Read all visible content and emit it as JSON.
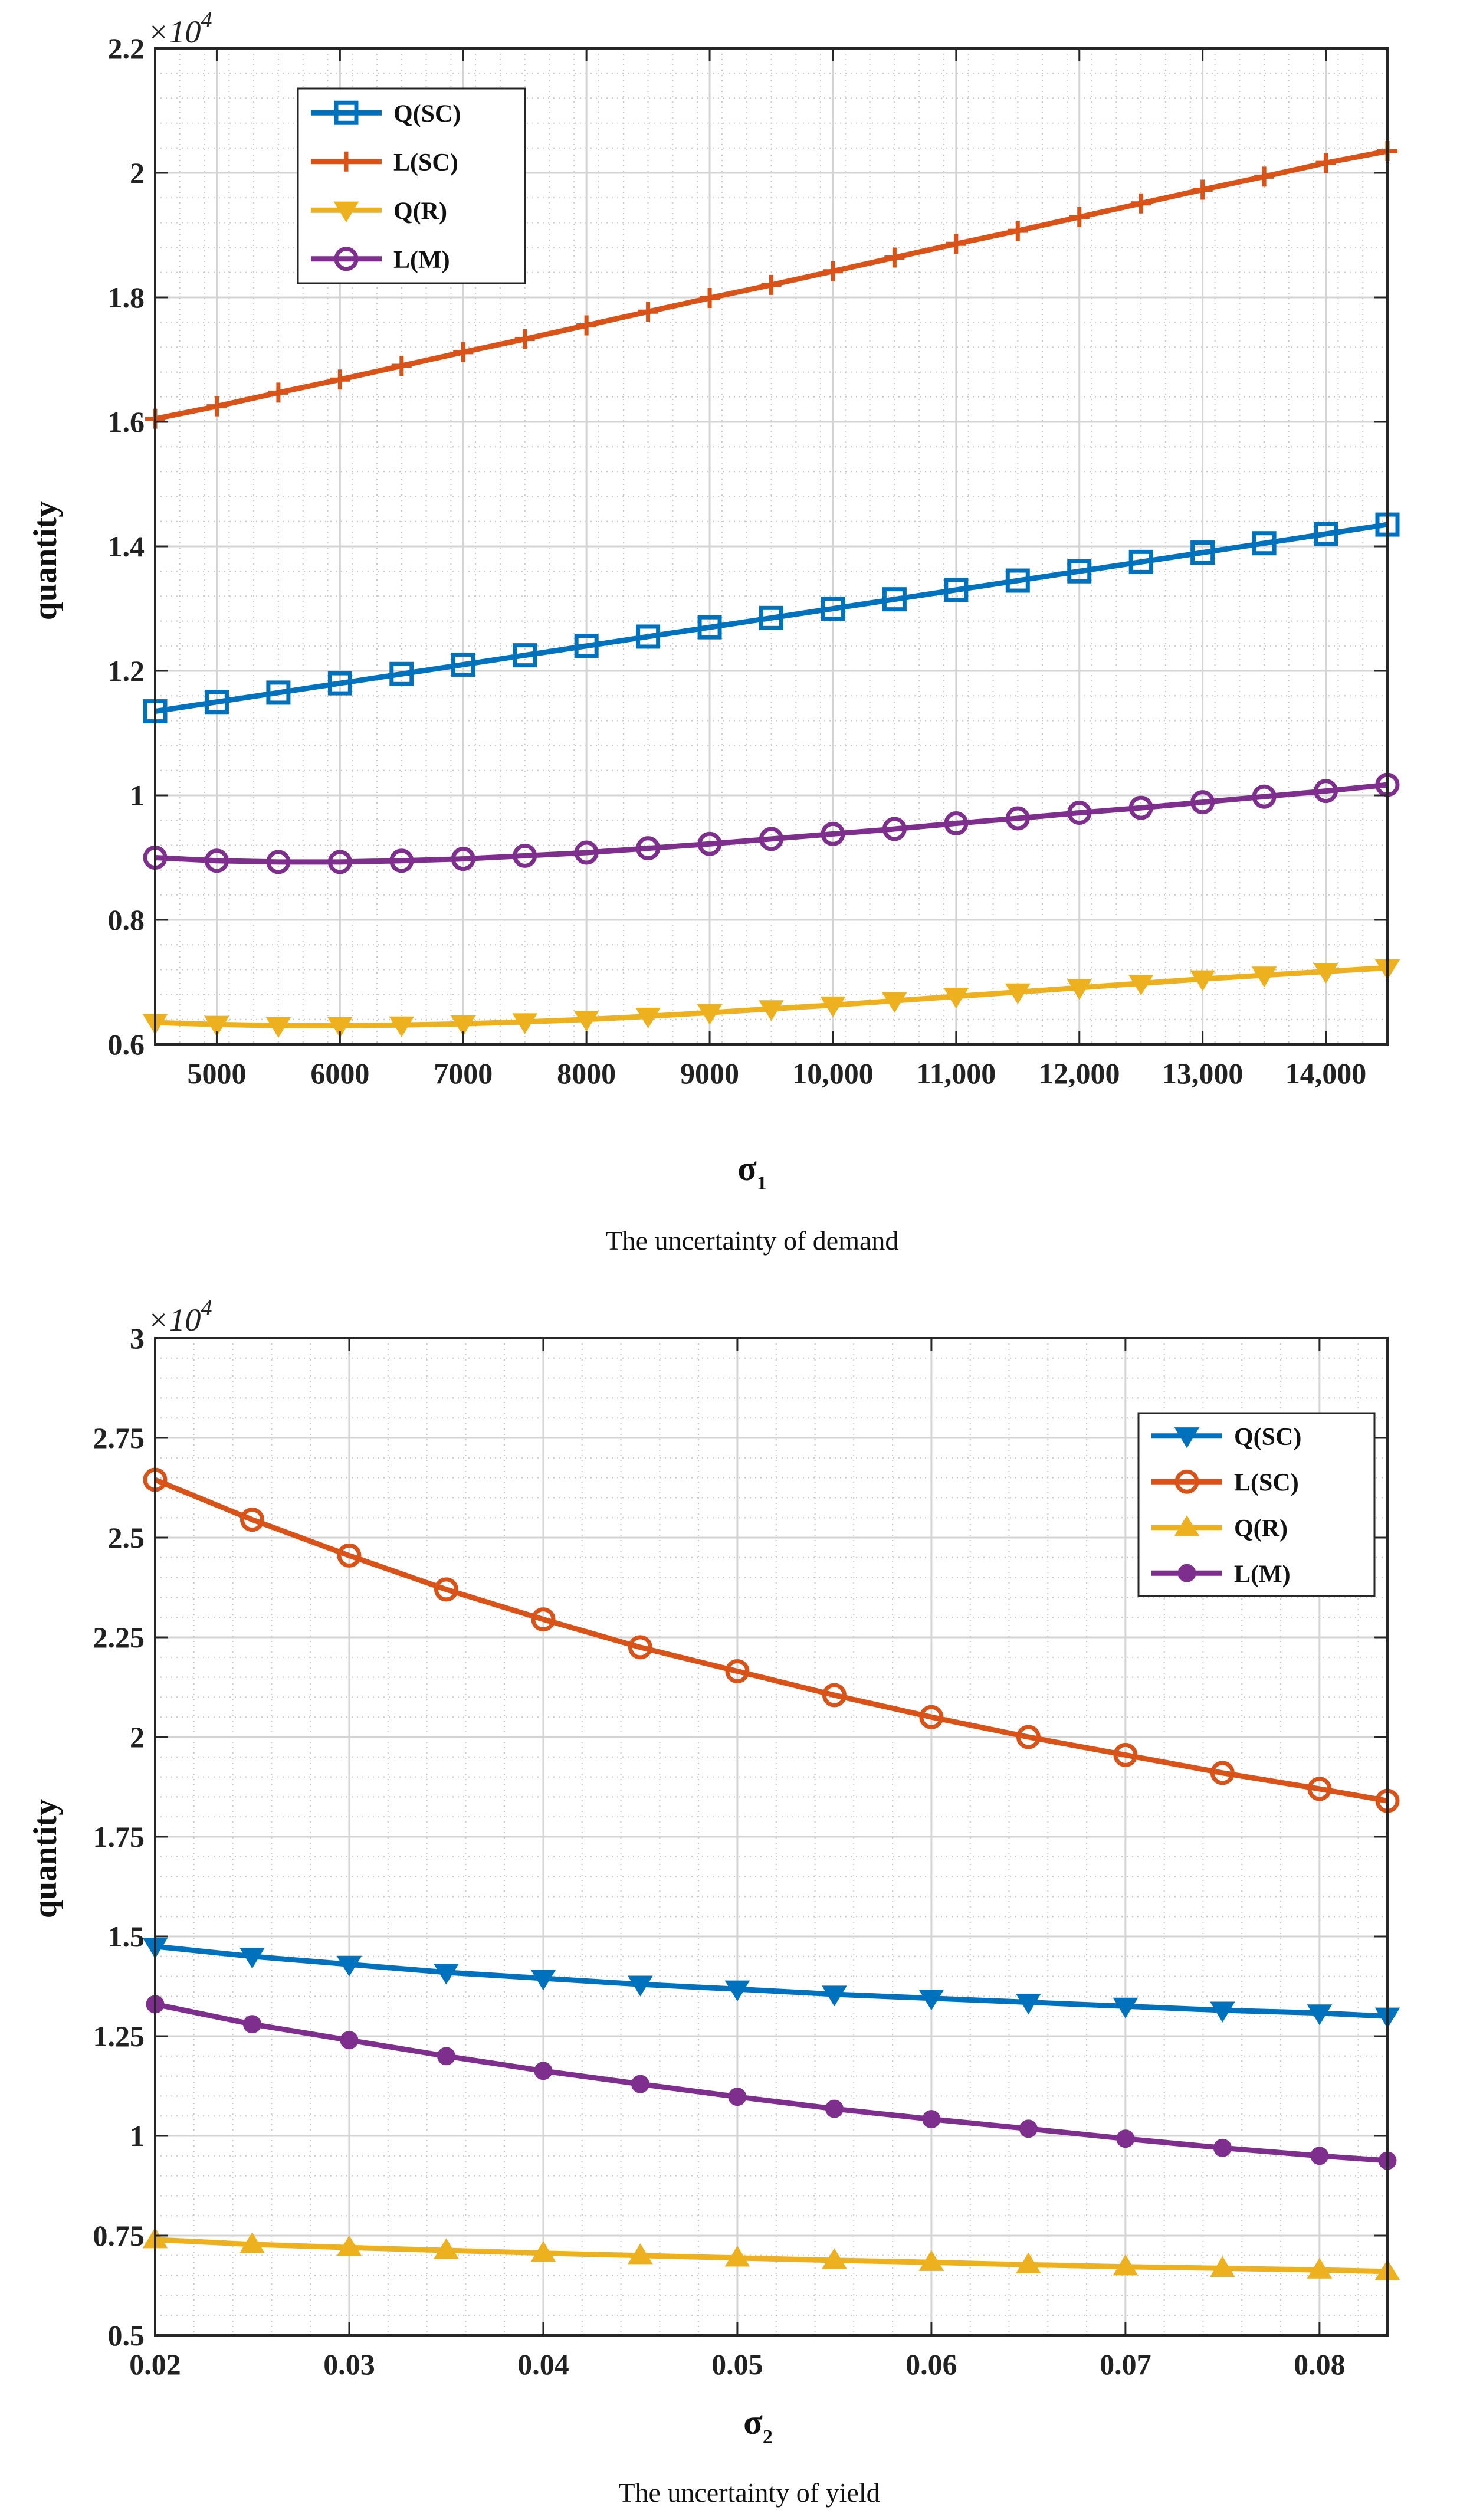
{
  "chart_data": [
    {
      "type": "line",
      "caption": "The uncertainty of demand",
      "xlabel": "σ",
      "xlabel_sub": "1",
      "ylabel": "quantity",
      "y_multiplier": "×10",
      "y_multiplier_exp": "4",
      "xlim": [
        4500,
        14500
      ],
      "ylim": [
        0.6,
        2.2
      ],
      "x_ticks": [
        5000,
        6000,
        7000,
        8000,
        9000,
        10000,
        11000,
        12000,
        13000,
        14000
      ],
      "x_tick_labels": [
        "5000",
        "6000",
        "7000",
        "8000",
        "9000",
        "10,000",
        "11,000",
        "12,000",
        "13,000",
        "14,000"
      ],
      "y_ticks": [
        0.6,
        0.8,
        1,
        1.2,
        1.4,
        1.6,
        1.8,
        2,
        2.2
      ],
      "y_tick_labels": [
        "0.6",
        "0.8",
        "1",
        "1.2",
        "1.4",
        "1.6",
        "1.8",
        "2",
        "2.2"
      ],
      "grid": true,
      "legend_position": "top-left",
      "x": [
        4500,
        5000,
        5500,
        6000,
        6500,
        7000,
        7500,
        8000,
        8500,
        9000,
        9500,
        10000,
        10500,
        11000,
        11500,
        12000,
        12500,
        13000,
        13500,
        14000,
        14500
      ],
      "series": [
        {
          "name": "Q(SC)",
          "color": "#0072bd",
          "marker": "square",
          "values": [
            1.135,
            1.15,
            1.165,
            1.18,
            1.195,
            1.21,
            1.225,
            1.24,
            1.255,
            1.27,
            1.285,
            1.3,
            1.315,
            1.33,
            1.345,
            1.36,
            1.375,
            1.39,
            1.405,
            1.42,
            1.435
          ]
        },
        {
          "name": "L(SC)",
          "color": "#d95319",
          "marker": "plus",
          "values": [
            1.605,
            1.625,
            1.647,
            1.668,
            1.69,
            1.712,
            1.733,
            1.755,
            1.777,
            1.799,
            1.82,
            1.842,
            1.864,
            1.886,
            1.907,
            1.929,
            1.951,
            1.973,
            1.994,
            2.016,
            2.035
          ]
        },
        {
          "name": "Q(R)",
          "color": "#edb120",
          "marker": "triangle-down",
          "values": [
            0.635,
            0.632,
            0.63,
            0.63,
            0.631,
            0.633,
            0.636,
            0.64,
            0.645,
            0.651,
            0.657,
            0.663,
            0.67,
            0.677,
            0.684,
            0.691,
            0.698,
            0.705,
            0.711,
            0.717,
            0.723
          ]
        },
        {
          "name": "L(M)",
          "color": "#7e2f8e",
          "marker": "circle",
          "values": [
            0.9,
            0.895,
            0.893,
            0.893,
            0.895,
            0.898,
            0.903,
            0.908,
            0.915,
            0.922,
            0.93,
            0.938,
            0.946,
            0.955,
            0.963,
            0.972,
            0.98,
            0.989,
            0.998,
            1.007,
            1.017
          ]
        }
      ]
    },
    {
      "type": "line",
      "caption": "The uncertainty of yield",
      "xlabel": "σ",
      "xlabel_sub": "2",
      "ylabel": "quantity",
      "y_multiplier": "×10",
      "y_multiplier_exp": "4",
      "xlim": [
        0.02,
        0.0835
      ],
      "ylim": [
        0.5,
        3
      ],
      "x_ticks": [
        0.02,
        0.03,
        0.04,
        0.05,
        0.06,
        0.07,
        0.08
      ],
      "x_tick_labels": [
        "0.02",
        "0.03",
        "0.04",
        "0.05",
        "0.06",
        "0.07",
        "0.08"
      ],
      "y_ticks": [
        0.5,
        0.75,
        1,
        1.25,
        1.5,
        1.75,
        2,
        2.25,
        2.5,
        2.75,
        3
      ],
      "y_tick_labels": [
        "0.5",
        "0.75",
        "1",
        "1.25",
        "1.5",
        "1.75",
        "2",
        "2.25",
        "2.5",
        "2.75",
        "3"
      ],
      "grid": true,
      "legend_position": "top-right",
      "x": [
        0.02,
        0.025,
        0.03,
        0.035,
        0.04,
        0.045,
        0.05,
        0.055,
        0.06,
        0.065,
        0.07,
        0.075,
        0.08,
        0.0835
      ],
      "series": [
        {
          "name": "Q(SC)",
          "color": "#0072bd",
          "marker": "triangle-down",
          "values": [
            1.475,
            1.45,
            1.43,
            1.41,
            1.395,
            1.38,
            1.368,
            1.355,
            1.345,
            1.335,
            1.325,
            1.315,
            1.308,
            1.3
          ]
        },
        {
          "name": "L(SC)",
          "color": "#d95319",
          "marker": "circle",
          "values": [
            2.645,
            2.545,
            2.455,
            2.37,
            2.295,
            2.225,
            2.165,
            2.105,
            2.05,
            2.0,
            1.955,
            1.91,
            1.87,
            1.84
          ]
        },
        {
          "name": "Q(R)",
          "color": "#edb120",
          "marker": "triangle-up",
          "values": [
            0.74,
            0.728,
            0.72,
            0.713,
            0.706,
            0.7,
            0.694,
            0.688,
            0.683,
            0.677,
            0.672,
            0.668,
            0.664,
            0.66
          ]
        },
        {
          "name": "L(M)",
          "color": "#7e2f8e",
          "marker": "dot",
          "values": [
            1.33,
            1.28,
            1.24,
            1.2,
            1.163,
            1.13,
            1.098,
            1.068,
            1.042,
            1.018,
            0.993,
            0.97,
            0.95,
            0.938
          ]
        }
      ]
    }
  ]
}
